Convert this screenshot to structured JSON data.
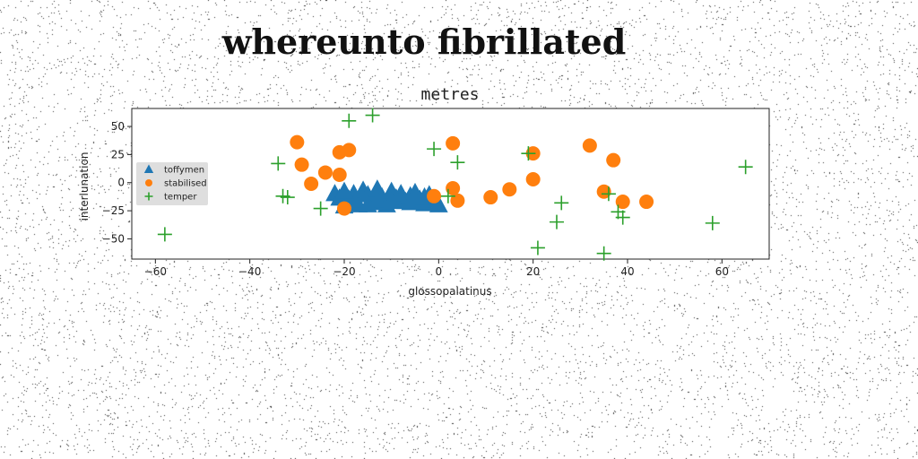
{
  "page_title": "whereunto fibrillated",
  "chart_data": {
    "type": "scatter",
    "title": "metres",
    "xlabel": "glossopalatinus",
    "ylabel": "interlunation",
    "xlim": [
      -65,
      70
    ],
    "ylim": [
      -68,
      66
    ],
    "xticks": [
      -60,
      -40,
      -20,
      0,
      20,
      40,
      60
    ],
    "yticks": [
      -50,
      -25,
      0,
      25,
      50
    ],
    "xtick_labels": [
      "−60",
      "−40",
      "−20",
      "0",
      "20",
      "40",
      "60"
    ],
    "ytick_labels": [
      "−50",
      "−25",
      "0",
      "25",
      "50"
    ],
    "grid": false,
    "legend_position": "center-left",
    "series": [
      {
        "name": "toffymen",
        "marker": "triangle",
        "color": "#1f77b4",
        "points": [
          [
            -22,
            -10
          ],
          [
            -21,
            -14
          ],
          [
            -20,
            -21
          ],
          [
            -19,
            -15
          ],
          [
            -18,
            -10
          ],
          [
            -17,
            -20
          ],
          [
            -16,
            -7
          ],
          [
            -15,
            -11
          ],
          [
            -14,
            -18
          ],
          [
            -13,
            -6
          ],
          [
            -12,
            -13
          ],
          [
            -11,
            -20
          ],
          [
            -10,
            -8
          ],
          [
            -9,
            -14
          ],
          [
            -8,
            -10
          ],
          [
            -7,
            -17
          ],
          [
            -6,
            -12
          ],
          [
            -5,
            -9
          ],
          [
            -4,
            -15
          ],
          [
            -3,
            -19
          ],
          [
            -2,
            -11
          ],
          [
            -1,
            -16
          ],
          [
            0,
            -20
          ],
          [
            -13,
            -16
          ],
          [
            -18,
            -16
          ],
          [
            -20,
            -8
          ],
          [
            -6,
            -18
          ],
          [
            -10,
            -17
          ],
          [
            -3,
            -13
          ],
          [
            -15,
            -20
          ]
        ]
      },
      {
        "name": "stabilised",
        "marker": "circle",
        "color": "#ff7f0e",
        "points": [
          [
            -30,
            36
          ],
          [
            -29,
            16
          ],
          [
            -27,
            -1
          ],
          [
            -24,
            9
          ],
          [
            -21,
            27
          ],
          [
            -21,
            7
          ],
          [
            -19,
            29
          ],
          [
            -20,
            -23
          ],
          [
            3,
            35
          ],
          [
            3,
            -5
          ],
          [
            4,
            -16
          ],
          [
            -1,
            -12
          ],
          [
            11,
            -13
          ],
          [
            15,
            -6
          ],
          [
            20,
            26
          ],
          [
            20,
            3
          ],
          [
            32,
            33
          ],
          [
            35,
            -8
          ],
          [
            37,
            20
          ],
          [
            39,
            -17
          ],
          [
            44,
            -17
          ]
        ]
      },
      {
        "name": "temper",
        "marker": "plus",
        "color": "#2ca02c",
        "points": [
          [
            -58,
            -46
          ],
          [
            -34,
            17
          ],
          [
            -33,
            -12
          ],
          [
            -32,
            -13
          ],
          [
            -25,
            -23
          ],
          [
            -19,
            55
          ],
          [
            -14,
            60
          ],
          [
            -1,
            30
          ],
          [
            2,
            -12
          ],
          [
            4,
            18
          ],
          [
            19,
            26
          ],
          [
            21,
            -58
          ],
          [
            25,
            -35
          ],
          [
            26,
            -18
          ],
          [
            35,
            -63
          ],
          [
            36,
            -10
          ],
          [
            38,
            -26
          ],
          [
            39,
            -31
          ],
          [
            58,
            -36
          ],
          [
            65,
            14
          ]
        ]
      }
    ]
  }
}
